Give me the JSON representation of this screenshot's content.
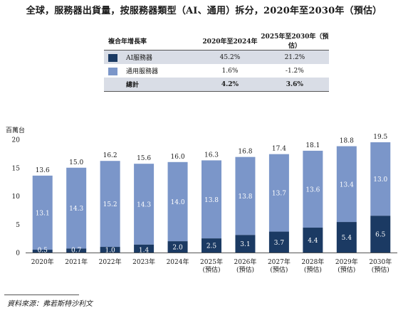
{
  "title": "全球，服務器出貨量，按服務器類型（AI、通用）拆分，2020年至2030年（預估）",
  "summary_table": {
    "header": [
      "複合年增長率",
      "2020年至2024年",
      "2025年至2030年（預估）"
    ],
    "rows": [
      {
        "label": "AI服務器",
        "v1": "45.2%",
        "v2": "21.2%",
        "color": "#1b3a63"
      },
      {
        "label": "通用服務器",
        "v1": "1.6%",
        "v2": "-1.2%",
        "color": "#7b96c9"
      },
      {
        "label": "總計",
        "v1": "4.2%",
        "v2": "3.6%"
      }
    ]
  },
  "unit_label": "百萬台",
  "source": "資料來源：弗若斯特沙利文",
  "colors": {
    "ai": "#1b3a63",
    "general": "#7b96c9"
  },
  "chart_data": {
    "type": "bar",
    "stacked": true,
    "categories": [
      "2020年",
      "2021年",
      "2022年",
      "2023年",
      "2024年",
      "2025年\n(預估)",
      "2026年\n(預估)",
      "2027年\n(預估)",
      "2028年\n(預估)",
      "2029年\n(預估)",
      "2030年\n(預估)"
    ],
    "series": [
      {
        "name": "AI服務器",
        "values": [
          0.5,
          0.7,
          1.0,
          1.4,
          2.0,
          2.5,
          3.1,
          3.7,
          4.4,
          5.4,
          6.5
        ]
      },
      {
        "name": "通用服務器",
        "values": [
          13.1,
          14.3,
          15.2,
          14.3,
          14.0,
          13.8,
          13.8,
          13.7,
          13.6,
          13.4,
          13.0
        ]
      }
    ],
    "totals": [
      13.6,
      15.0,
      16.2,
      15.6,
      16.0,
      16.3,
      16.8,
      17.4,
      18.1,
      18.8,
      19.5
    ],
    "y_ticks": [
      0,
      5,
      10,
      15,
      20
    ],
    "ylim": [
      0,
      20
    ],
    "ylabel": "百萬台"
  }
}
